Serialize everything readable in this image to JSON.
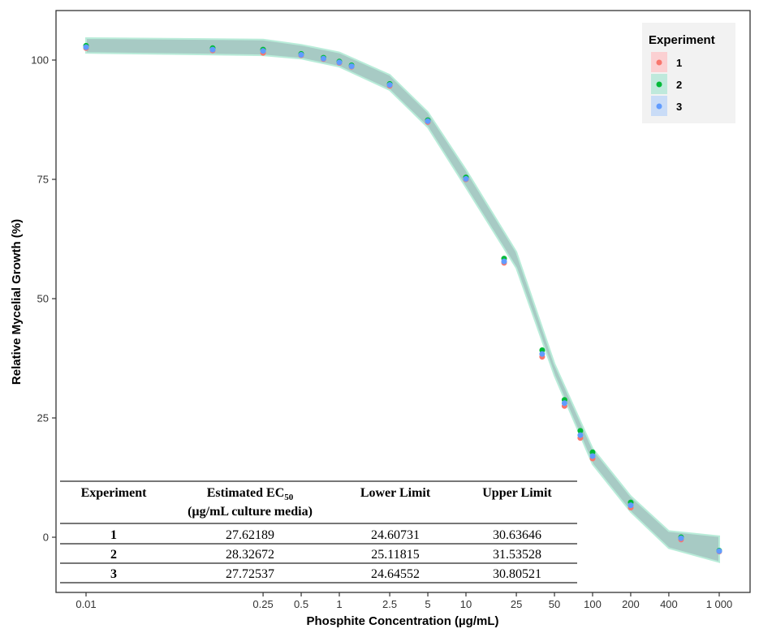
{
  "chart_data": {
    "type": "scatter",
    "xlabel": "Phosphite Concentration (µg/mL)",
    "ylabel": "Relative Mycelial Growth (%)",
    "x_scale": "log",
    "xlim": [
      0.006,
      1500
    ],
    "ylim": [
      -10,
      107
    ],
    "x_ticks": [
      0.01,
      0.25,
      0.5,
      1,
      2.5,
      5,
      10,
      25,
      50,
      100,
      200,
      400,
      1000
    ],
    "x_tick_labels": [
      "0.01",
      "0.25",
      "0.5",
      "1",
      "2.5",
      "5",
      "10",
      "25",
      "50",
      "100",
      "200",
      "400",
      "1 000"
    ],
    "y_ticks": [
      0,
      25,
      50,
      75,
      100
    ],
    "y_tick_labels": [
      "0",
      "25",
      "50",
      "75",
      "100"
    ],
    "grid": false,
    "legend": {
      "title": "Experiment",
      "position": "top-right"
    },
    "band": {
      "x": [
        0.01,
        0.25,
        0.5,
        1,
        2.5,
        5,
        10,
        25,
        50,
        100,
        200,
        400,
        1000
      ],
      "lower": [
        101.5,
        101.0,
        100.3,
        98.6,
        93.7,
        85.9,
        73.3,
        56.4,
        33.9,
        15.3,
        5.3,
        -2.3,
        -5.2
      ],
      "upper": [
        104.6,
        104.3,
        103.2,
        101.6,
        96.9,
        89.1,
        77.0,
        59.8,
        36.4,
        18.6,
        8.6,
        1.3,
        0.2
      ]
    },
    "series": [
      {
        "name": "1",
        "color": "#F8766D",
        "x": [
          0.01,
          0.1,
          0.25,
          0.5,
          0.75,
          1,
          1.25,
          2.5,
          5,
          10,
          20,
          40,
          60,
          80,
          100,
          200,
          500,
          1000
        ],
        "y": [
          102.5,
          102.0,
          101.5,
          101.0,
          100.2,
          99.4,
          98.6,
          94.6,
          87.0,
          75.0,
          57.5,
          37.8,
          27.5,
          20.8,
          16.5,
          6.2,
          -0.5,
          -3.0
        ]
      },
      {
        "name": "2",
        "color": "#00BA38",
        "x": [
          0.01,
          0.1,
          0.25,
          0.5,
          0.75,
          1,
          1.25,
          2.5,
          5,
          10,
          20,
          40,
          60,
          80,
          100,
          200,
          500,
          1000
        ],
        "y": [
          103.0,
          102.5,
          102.2,
          101.3,
          100.5,
          99.7,
          98.9,
          95.0,
          87.4,
          75.4,
          58.4,
          39.2,
          28.8,
          22.3,
          17.8,
          7.3,
          0.0,
          -2.8
        ]
      },
      {
        "name": "3",
        "color": "#619CFF",
        "x": [
          0.01,
          0.1,
          0.25,
          0.5,
          0.75,
          1,
          1.25,
          2.5,
          5,
          10,
          20,
          40,
          60,
          80,
          100,
          200,
          500,
          1000
        ],
        "y": [
          102.7,
          102.2,
          101.9,
          101.1,
          100.3,
          99.5,
          98.7,
          94.8,
          87.2,
          75.1,
          57.8,
          38.4,
          28.1,
          21.4,
          17.0,
          6.7,
          -0.2,
          -2.9
        ]
      }
    ],
    "table": {
      "headers": {
        "experiment": "Experiment",
        "ec50_prefix": "Estimated EC",
        "ec50_sub": "50",
        "ec50_units": "(µg/mL culture media)",
        "lower": "Lower Limit",
        "upper": "Upper Limit"
      },
      "rows": [
        {
          "experiment": "1",
          "ec50": "27.62189",
          "lower": "24.60731",
          "upper": "30.63646"
        },
        {
          "experiment": "2",
          "ec50": "28.32672",
          "lower": "25.11815",
          "upper": "31.53528"
        },
        {
          "experiment": "3",
          "ec50": "27.72537",
          "lower": "24.64552",
          "upper": "30.80521"
        }
      ]
    }
  }
}
